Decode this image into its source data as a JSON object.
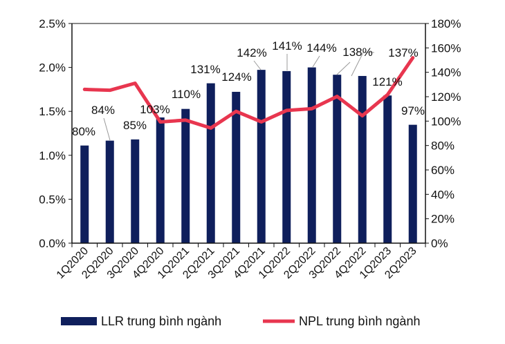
{
  "chart_data": {
    "type": "bar+line",
    "categories": [
      "1Q2020",
      "2Q2020",
      "3Q2020",
      "4Q2020",
      "1Q2021",
      "2Q2021",
      "3Q2021",
      "4Q2021",
      "1Q2022",
      "2Q2022",
      "3Q2022",
      "4Q2022",
      "1Q2023",
      "2Q2023"
    ],
    "series": [
      {
        "name": "LLR trung bình ngành",
        "type": "bar",
        "axis": "right",
        "color": "#0f1f5c",
        "values": [
          80,
          84,
          85,
          103,
          110,
          131,
          124,
          142,
          141,
          144,
          138,
          137,
          121,
          97
        ],
        "labels": [
          "80%",
          "84%",
          "85%",
          "103%",
          "110%",
          "131%",
          "124%",
          "142%",
          "141%",
          "144%",
          "138%",
          "137%",
          "121%",
          "97%"
        ]
      },
      {
        "name": "NPL trung bình ngành",
        "type": "line",
        "axis": "left",
        "color": "#e8364f",
        "values": [
          1.75,
          1.74,
          1.82,
          1.38,
          1.4,
          1.31,
          1.5,
          1.38,
          1.51,
          1.53,
          1.67,
          1.45,
          1.69,
          2.11
        ]
      }
    ],
    "left_axis": {
      "ylim": [
        0,
        2.5
      ],
      "ticks": [
        "0.0%",
        "0.5%",
        "1.0%",
        "1.5%",
        "2.0%",
        "2.5%"
      ]
    },
    "right_axis": {
      "ylim": [
        0,
        180
      ],
      "ticks": [
        "0%",
        "20%",
        "40%",
        "60%",
        "80%",
        "100%",
        "120%",
        "140%",
        "160%",
        "180%"
      ]
    },
    "grid": false,
    "legend": "bottom"
  }
}
